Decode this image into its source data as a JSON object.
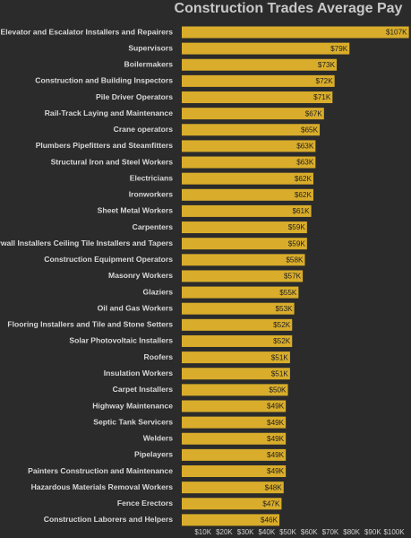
{
  "chart_data": {
    "type": "bar",
    "orientation": "horizontal",
    "title": "Construction Trades Average Pay",
    "categories": [
      "Elevator and Escalator Installers and Repairers",
      "Supervisors",
      "Boilermakers",
      "Construction and Building Inspectors",
      "Pile Driver Operators",
      "Rail-Track Laying and Maintenance",
      "Crane operators",
      "Plumbers Pipefitters and Steamfitters",
      "Structural Iron and Steel Workers",
      "Electricians",
      "Ironworkers",
      "Sheet Metal Workers",
      "Carpenters",
      "Drywall Installers Ceiling Tile Installers and Tapers",
      "Construction Equipment Operators",
      "Masonry Workers",
      "Glaziers",
      "Oil and Gas Workers",
      "Flooring Installers and Tile and Stone Setters",
      "Solar Photovoltaic Installers",
      "Roofers",
      "Insulation Workers",
      "Carpet Installers",
      "Highway Maintenance",
      "Septic Tank Servicers",
      "Welders",
      "Pipelayers",
      "Painters Construction and Maintenance",
      "Hazardous Materials Removal Workers",
      "Fence Erectors",
      "Construction Laborers and Helpers"
    ],
    "values": [
      107000,
      79000,
      73000,
      72000,
      71000,
      67000,
      65000,
      63000,
      63000,
      62000,
      62000,
      61000,
      59000,
      59000,
      58000,
      57000,
      55000,
      53000,
      52000,
      52000,
      51000,
      51000,
      50000,
      49000,
      49000,
      49000,
      49000,
      49000,
      48000,
      47000,
      46000
    ],
    "value_labels": [
      "$107K",
      "$79K",
      "$73K",
      "$72K",
      "$71K",
      "$67K",
      "$65K",
      "$63K",
      "$63K",
      "$62K",
      "$62K",
      "$61K",
      "$59K",
      "$59K",
      "$58K",
      "$57K",
      "$55K",
      "$53K",
      "$52K",
      "$52K",
      "$51K",
      "$51K",
      "$50K",
      "$49K",
      "$49K",
      "$49K",
      "$49K",
      "$49K",
      "$48K",
      "$47K",
      "$46K"
    ],
    "color": "#d9ad2b",
    "xlim": [
      0,
      108000
    ],
    "xticks": [
      {
        "value": 10000,
        "label": "$10K"
      },
      {
        "value": 20000,
        "label": "$20K"
      },
      {
        "value": 30000,
        "label": "$30K"
      },
      {
        "value": 40000,
        "label": "$40K"
      },
      {
        "value": 50000,
        "label": "$50K"
      },
      {
        "value": 60000,
        "label": "$60K"
      },
      {
        "value": 70000,
        "label": "$70K"
      },
      {
        "value": 80000,
        "label": "$80K"
      },
      {
        "value": 90000,
        "label": "$90K"
      },
      {
        "value": 100000,
        "label": "$100K"
      }
    ]
  }
}
